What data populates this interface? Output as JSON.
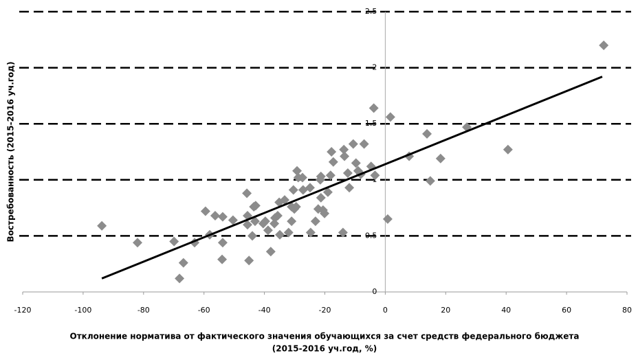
{
  "chart_data": {
    "type": "scatter",
    "ylabel": "Востребованность (2015-2016 уч.год)",
    "xlabel": [
      "Отклонение норматива от фактического значения обучающихся за счет средств федерального бюджета",
      "(2015-2016 уч.год, %)"
    ],
    "color": "#8c8c8c",
    "xlim": [
      -120,
      80
    ],
    "xticks": [
      -120,
      -100,
      -80,
      -60,
      -40,
      -20,
      0,
      20,
      40,
      60,
      80
    ],
    "ylim": [
      0,
      2.5
    ],
    "yticks": [
      0,
      0.5,
      1,
      1.5,
      2,
      2.5
    ],
    "grid": true,
    "x": [
      -93.8,
      -82.0,
      -69.9,
      -68.1,
      -66.8,
      -63.1,
      -59.5,
      -58.1,
      -56.3,
      -53.8,
      -53.8,
      -54.0,
      -50.4,
      -45.8,
      -45.6,
      -45.6,
      -45.1,
      -44.0,
      -43.5,
      -43.1,
      -42.9,
      -40.4,
      -39.7,
      -38.8,
      -37.9,
      -36.7,
      -36.5,
      -35.6,
      -35.1,
      -34.9,
      -33.3,
      -32.0,
      -31.0,
      -31.0,
      -30.1,
      -30.4,
      -29.5,
      -29.2,
      -28.8,
      -27.4,
      -27.2,
      -24.9,
      -24.7,
      -23.1,
      -22.2,
      -21.5,
      -21.3,
      -21.3,
      -20.6,
      -20.1,
      -19.0,
      -18.1,
      -17.8,
      -17.2,
      -14.0,
      -13.7,
      -13.5,
      -12.4,
      -11.9,
      -10.6,
      -9.7,
      -9.0,
      -8.1,
      -7.0,
      -4.7,
      -3.8,
      -3.4,
      0.8,
      1.7,
      7.9,
      13.8,
      14.9,
      18.3,
      27.0,
      40.6,
      72.3
    ],
    "values": [
      0.59,
      0.44,
      0.45,
      0.12,
      0.26,
      0.44,
      0.72,
      0.51,
      0.68,
      0.67,
      0.44,
      0.29,
      0.64,
      0.88,
      0.68,
      0.6,
      0.28,
      0.5,
      0.76,
      0.63,
      0.77,
      0.61,
      0.63,
      0.55,
      0.36,
      0.61,
      0.66,
      0.68,
      0.8,
      0.51,
      0.82,
      0.53,
      0.63,
      0.76,
      0.74,
      0.91,
      0.76,
      1.08,
      1.02,
      1.02,
      0.91,
      0.93,
      0.53,
      0.63,
      0.74,
      1.0,
      0.84,
      1.03,
      0.73,
      0.7,
      0.89,
      1.04,
      1.25,
      1.16,
      0.53,
      1.27,
      1.21,
      1.06,
      0.93,
      1.32,
      1.15,
      1.08,
      1.05,
      1.32,
      1.12,
      1.64,
      1.04,
      0.65,
      1.56,
      1.21,
      1.41,
      0.99,
      1.19,
      1.47,
      1.27,
      2.2
    ],
    "trendline": {
      "color": "#000000",
      "x": [
        -93.8,
        71.8
      ],
      "values": [
        0.12,
        1.92
      ]
    }
  }
}
